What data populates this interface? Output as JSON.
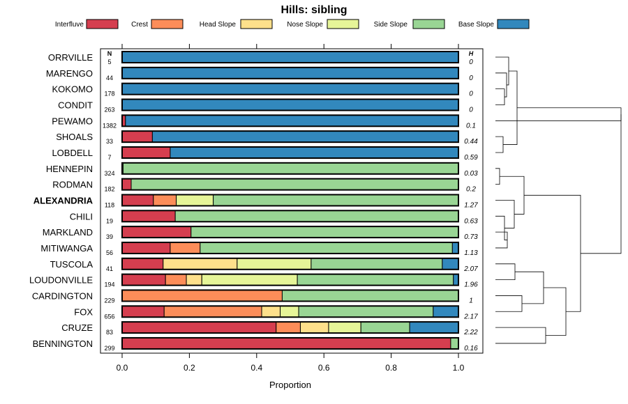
{
  "chart_data": {
    "type": "bar",
    "subtype": "stacked-horizontal",
    "title": "Hills: sibling",
    "xlabel": "Proportion",
    "xlim": [
      0,
      1
    ],
    "xticks": [
      "0.0",
      "0.2",
      "0.4",
      "0.6",
      "0.8",
      "1.0"
    ],
    "xtick_values": [
      0,
      0.2,
      0.4,
      0.6,
      0.8,
      1.0
    ],
    "n_header": "N",
    "h_header": "H",
    "legend": [
      {
        "name": "Interfluve",
        "color": "#d53e4f"
      },
      {
        "name": "Crest",
        "color": "#fc8d59"
      },
      {
        "name": "Head Slope",
        "color": "#fee08b"
      },
      {
        "name": "Nose Slope",
        "color": "#e6f598"
      },
      {
        "name": "Side Slope",
        "color": "#99d594"
      },
      {
        "name": "Base Slope",
        "color": "#3288bd"
      }
    ],
    "rows": [
      {
        "name": "ORRVILLE",
        "n": "5",
        "h": "0",
        "bold": false,
        "values": [
          0,
          0,
          0,
          0,
          0,
          1.0
        ]
      },
      {
        "name": "MARENGO",
        "n": "44",
        "h": "0",
        "bold": false,
        "values": [
          0,
          0,
          0,
          0,
          0,
          1.0
        ]
      },
      {
        "name": "KOKOMO",
        "n": "178",
        "h": "0",
        "bold": false,
        "values": [
          0,
          0,
          0,
          0,
          0,
          1.0
        ]
      },
      {
        "name": "CONDIT",
        "n": "263",
        "h": "0",
        "bold": false,
        "values": [
          0,
          0,
          0,
          0,
          0,
          1.0
        ]
      },
      {
        "name": "PEWAMO",
        "n": "1382",
        "h": "0.1",
        "bold": false,
        "values": [
          0.01,
          0,
          0,
          0,
          0,
          0.99
        ]
      },
      {
        "name": "SHOALS",
        "n": "33",
        "h": "0.44",
        "bold": false,
        "values": [
          0.09,
          0,
          0,
          0,
          0,
          0.91
        ]
      },
      {
        "name": "LOBDELL",
        "n": "7",
        "h": "0.59",
        "bold": false,
        "values": [
          0.143,
          0,
          0,
          0,
          0,
          0.857
        ]
      },
      {
        "name": "HENNEPIN",
        "n": "324",
        "h": "0.03",
        "bold": false,
        "values": [
          0.003,
          0,
          0,
          0,
          0.997,
          0
        ]
      },
      {
        "name": "RODMAN",
        "n": "182",
        "h": "0.2",
        "bold": false,
        "values": [
          0.027,
          0,
          0,
          0,
          0.973,
          0
        ]
      },
      {
        "name": "ALEXANDRIA",
        "n": "118",
        "h": "1.27",
        "bold": true,
        "values": [
          0.093,
          0.068,
          0,
          0.11,
          0.729,
          0
        ]
      },
      {
        "name": "CHILI",
        "n": "19",
        "h": "0.63",
        "bold": false,
        "values": [
          0.158,
          0,
          0,
          0,
          0.842,
          0
        ]
      },
      {
        "name": "MARKLAND",
        "n": "39",
        "h": "0.73",
        "bold": false,
        "values": [
          0.205,
          0,
          0,
          0,
          0.795,
          0
        ]
      },
      {
        "name": "MITIWANGA",
        "n": "56",
        "h": "1.13",
        "bold": false,
        "values": [
          0.143,
          0.089,
          0,
          0,
          0.75,
          0.018
        ]
      },
      {
        "name": "TUSCOLA",
        "n": "41",
        "h": "2.07",
        "bold": false,
        "values": [
          0.122,
          0,
          0.22,
          0.22,
          0.39,
          0.048
        ]
      },
      {
        "name": "LOUDONVILLE",
        "n": "194",
        "h": "1.96",
        "bold": false,
        "values": [
          0.129,
          0.062,
          0.046,
          0.284,
          0.464,
          0.015
        ]
      },
      {
        "name": "CARDINGTON",
        "n": "229",
        "h": "1",
        "bold": false,
        "values": [
          0,
          0.476,
          0,
          0,
          0.524,
          0
        ]
      },
      {
        "name": "FOX",
        "n": "656",
        "h": "2.17",
        "bold": false,
        "values": [
          0.125,
          0.29,
          0.055,
          0.055,
          0.4,
          0.075
        ]
      },
      {
        "name": "CRUZE",
        "n": "83",
        "h": "2.22",
        "bold": false,
        "values": [
          0.458,
          0.072,
          0.084,
          0.096,
          0.145,
          0.145
        ]
      },
      {
        "name": "BENNINGTON",
        "n": "299",
        "h": "0.16",
        "bold": false,
        "values": [
          0.977,
          0,
          0,
          0,
          0.023,
          0
        ]
      }
    ]
  }
}
